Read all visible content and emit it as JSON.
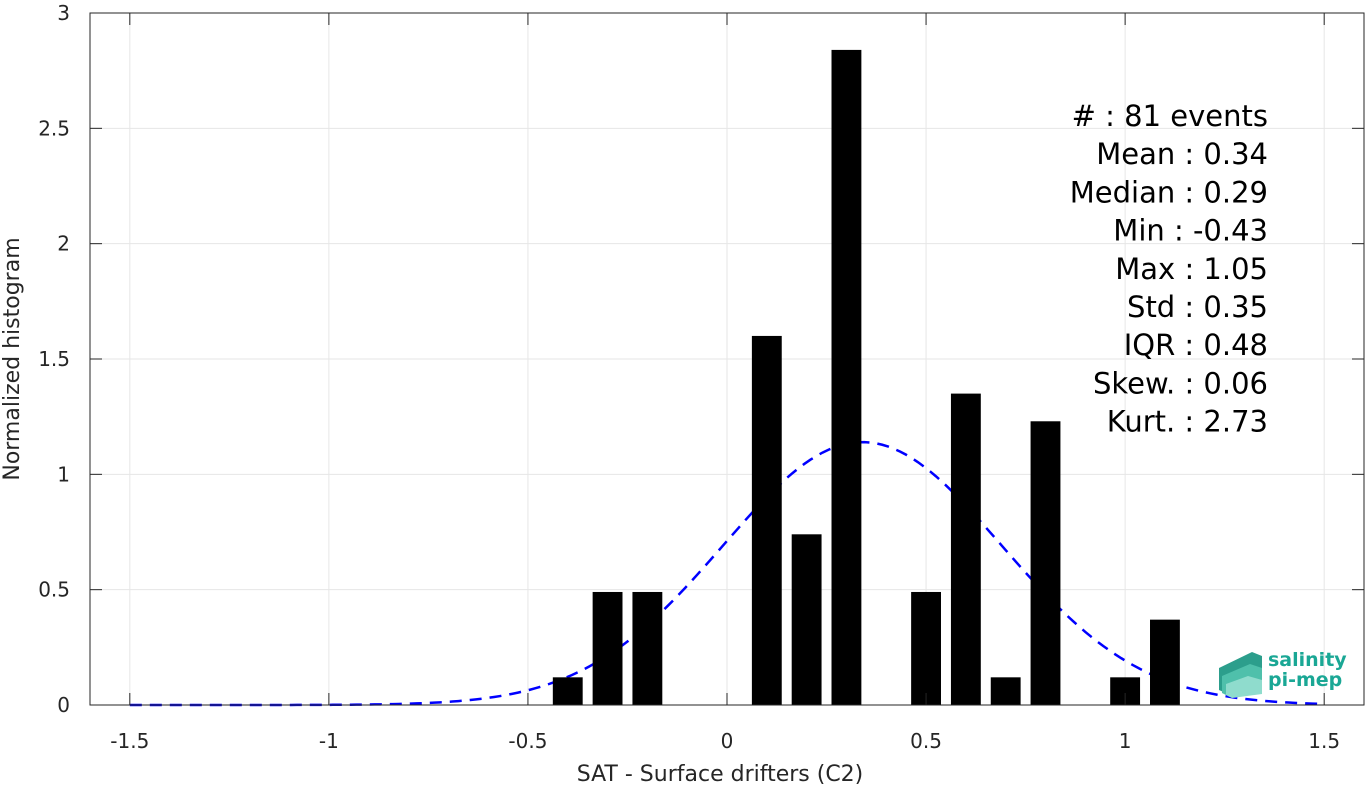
{
  "chart_data": {
    "type": "bar",
    "bin_width": 0.075,
    "bars": [
      {
        "x": -0.4,
        "y": 0.12
      },
      {
        "x": -0.3,
        "y": 0.49
      },
      {
        "x": -0.2,
        "y": 0.49
      },
      {
        "x": 0.1,
        "y": 1.6
      },
      {
        "x": 0.2,
        "y": 0.74
      },
      {
        "x": 0.3,
        "y": 2.84
      },
      {
        "x": 0.5,
        "y": 0.49
      },
      {
        "x": 0.6,
        "y": 1.35
      },
      {
        "x": 0.7,
        "y": 0.12
      },
      {
        "x": 0.8,
        "y": 1.23
      },
      {
        "x": 1.0,
        "y": 0.12
      },
      {
        "x": 1.1,
        "y": 0.37
      }
    ],
    "fit_curve": {
      "style": "dashed",
      "color": "#0000ff",
      "mean": 0.34,
      "std": 0.35,
      "x_range": [
        -1.5,
        1.5
      ]
    },
    "xlabel": "SAT - Surface drifters (C2)",
    "ylabel": "Normalized histogram",
    "xlim": [
      -1.6,
      1.6
    ],
    "ylim": [
      0,
      3
    ],
    "xticks": [
      -1.5,
      -1,
      -0.5,
      0,
      0.5,
      1,
      1.5
    ],
    "xtick_labels": [
      "-1.5",
      "-1",
      "-0.5",
      "0",
      "0.5",
      "1",
      "1.5"
    ],
    "yticks": [
      0,
      0.5,
      1,
      1.5,
      2,
      2.5,
      3
    ],
    "ytick_labels": [
      "0",
      "0.5",
      "1",
      "1.5",
      "2",
      "2.5",
      "3"
    ],
    "grid": true,
    "bar_color": "#000000"
  },
  "stats": [
    "#  : 81 events",
    "Mean : 0.34",
    "Median : 0.29",
    "Min : -0.43",
    "Max : 1.05",
    "Std : 0.35",
    "IQR : 0.48",
    "Skew. : 0.06",
    "Kurt. : 2.73"
  ],
  "logo": {
    "line1": "salinity",
    "line2": "pi-mep",
    "color": "#1aa795"
  }
}
